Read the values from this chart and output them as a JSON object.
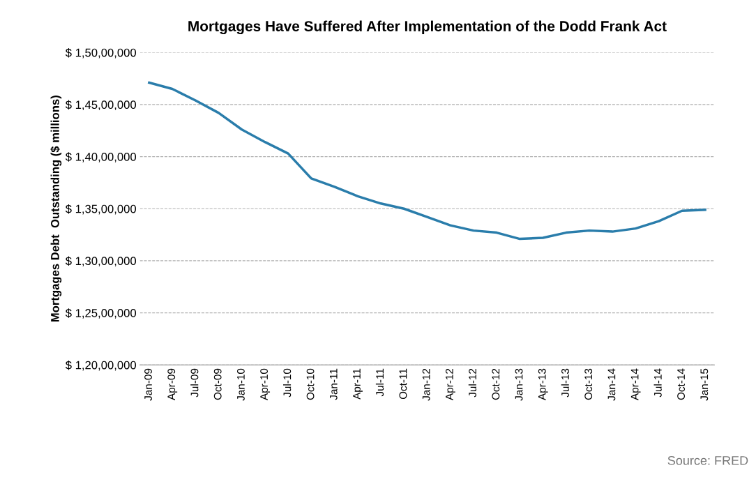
{
  "chart_data": {
    "type": "line",
    "title": "Mortgages Have Suffered After Implementation of the Dodd Frank Act",
    "ylabel": "Mortgages Debt  Outstanding ($ millions)",
    "annotations": [
      "Source: FRED"
    ],
    "categories": [
      "Jan-09",
      "Apr-09",
      "Jul-09",
      "Oct-09",
      "Jan-10",
      "Apr-10",
      "Jul-10",
      "Oct-10",
      "Jan-11",
      "Apr-11",
      "Jul-11",
      "Oct-11",
      "Jan-12",
      "Apr-12",
      "Jul-12",
      "Oct-12",
      "Jan-13",
      "Apr-13",
      "Jul-13",
      "Oct-13",
      "Jan-14",
      "Apr-14",
      "Jul-14",
      "Oct-14",
      "Jan-15"
    ],
    "series": [
      {
        "color": "#2a7dab",
        "values": [
          14710000,
          14650000,
          14540000,
          14420000,
          14260000,
          14140000,
          14030000,
          13790000,
          13710000,
          13620000,
          13550000,
          13500000,
          13420000,
          13340000,
          13290000,
          13270000,
          13210000,
          13220000,
          13270000,
          13290000,
          13280000,
          13310000,
          13380000,
          13480000,
          13490000
        ]
      }
    ],
    "ylim": [
      12000000,
      15000000
    ],
    "yticks": [
      {
        "value": 12000000,
        "label": "$ 1,20,00,000"
      },
      {
        "value": 12500000,
        "label": "$ 1,25,00,000"
      },
      {
        "value": 13000000,
        "label": "$ 1,30,00,000"
      },
      {
        "value": 13500000,
        "label": "$ 1,35,00,000"
      },
      {
        "value": 14000000,
        "label": "$ 1,40,00,000"
      },
      {
        "value": 14500000,
        "label": "$ 1,45,00,000"
      },
      {
        "value": 15000000,
        "label": "$ 1,50,00,000"
      }
    ],
    "grid": "y",
    "line_style": "solid"
  }
}
